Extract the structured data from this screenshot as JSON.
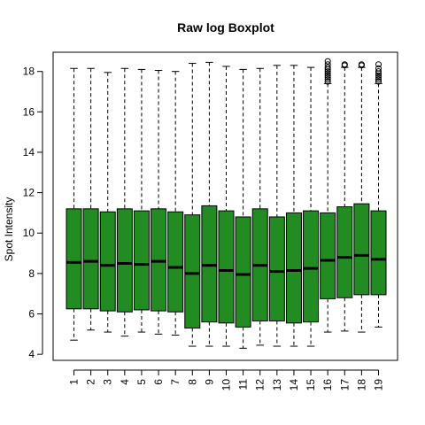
{
  "chart_data": {
    "type": "boxplot",
    "title": "Raw log Boxplot",
    "xlabel": "",
    "ylabel": "Spot Intensity",
    "ylim": [
      3.7,
      18.95
    ],
    "yticks": [
      4,
      6,
      8,
      10,
      12,
      14,
      16,
      18
    ],
    "grid": false,
    "legend": "none",
    "box_color": "#228B22",
    "categories": [
      "1",
      "2",
      "3",
      "4",
      "5",
      "6",
      "7",
      "8",
      "9",
      "10",
      "11",
      "12",
      "13",
      "14",
      "15",
      "16",
      "17",
      "18",
      "19"
    ],
    "boxes": [
      {
        "label": "1",
        "min": 4.7,
        "q1": 6.25,
        "median": 8.55,
        "q3": 11.2,
        "max": 18.15,
        "outliers": []
      },
      {
        "label": "2",
        "min": 5.2,
        "q1": 6.25,
        "median": 8.6,
        "q3": 11.2,
        "max": 18.15,
        "outliers": []
      },
      {
        "label": "3",
        "min": 5.1,
        "q1": 6.15,
        "median": 8.4,
        "q3": 11.05,
        "max": 17.95,
        "outliers": []
      },
      {
        "label": "4",
        "min": 4.9,
        "q1": 6.1,
        "median": 8.5,
        "q3": 11.2,
        "max": 18.15,
        "outliers": []
      },
      {
        "label": "5",
        "min": 5.1,
        "q1": 6.2,
        "median": 8.45,
        "q3": 11.1,
        "max": 18.1,
        "outliers": []
      },
      {
        "label": "6",
        "min": 5.0,
        "q1": 6.15,
        "median": 8.6,
        "q3": 11.2,
        "max": 18.05,
        "outliers": []
      },
      {
        "label": "7",
        "min": 4.95,
        "q1": 6.1,
        "median": 8.3,
        "q3": 11.05,
        "max": 18.0,
        "outliers": []
      },
      {
        "label": "8",
        "min": 4.4,
        "q1": 5.3,
        "median": 8.0,
        "q3": 10.9,
        "max": 18.4,
        "outliers": []
      },
      {
        "label": "9",
        "min": 4.4,
        "q1": 5.6,
        "median": 8.4,
        "q3": 11.35,
        "max": 18.45,
        "outliers": []
      },
      {
        "label": "10",
        "min": 4.4,
        "q1": 5.55,
        "median": 8.15,
        "q3": 11.1,
        "max": 18.25,
        "outliers": []
      },
      {
        "label": "11",
        "min": 4.3,
        "q1": 5.35,
        "median": 7.95,
        "q3": 10.8,
        "max": 18.1,
        "outliers": []
      },
      {
        "label": "12",
        "min": 4.45,
        "q1": 5.65,
        "median": 8.4,
        "q3": 11.2,
        "max": 18.15,
        "outliers": []
      },
      {
        "label": "13",
        "min": 4.4,
        "q1": 5.65,
        "median": 8.1,
        "q3": 10.8,
        "max": 18.3,
        "outliers": []
      },
      {
        "label": "14",
        "min": 4.4,
        "q1": 5.55,
        "median": 8.15,
        "q3": 11.0,
        "max": 18.3,
        "outliers": []
      },
      {
        "label": "15",
        "min": 4.4,
        "q1": 5.6,
        "median": 8.25,
        "q3": 11.1,
        "max": 18.2,
        "outliers": []
      },
      {
        "label": "16",
        "min": 5.1,
        "q1": 6.75,
        "median": 8.65,
        "q3": 11.0,
        "max": 17.4,
        "outliers": [
          17.5,
          17.6,
          17.7,
          17.8,
          17.9,
          18.0,
          18.1,
          18.2,
          18.35,
          18.5
        ]
      },
      {
        "label": "17",
        "min": 5.15,
        "q1": 6.8,
        "median": 8.8,
        "q3": 11.3,
        "max": 18.2,
        "outliers": [
          18.3,
          18.35
        ]
      },
      {
        "label": "18",
        "min": 5.1,
        "q1": 6.95,
        "median": 8.9,
        "q3": 11.45,
        "max": 18.2,
        "outliers": [
          18.3,
          18.35
        ]
      },
      {
        "label": "19",
        "min": 5.35,
        "q1": 6.95,
        "median": 8.7,
        "q3": 11.1,
        "max": 17.4,
        "outliers": [
          17.5,
          17.6,
          17.7,
          17.8,
          17.9,
          18.0,
          18.15,
          18.35
        ]
      }
    ]
  }
}
